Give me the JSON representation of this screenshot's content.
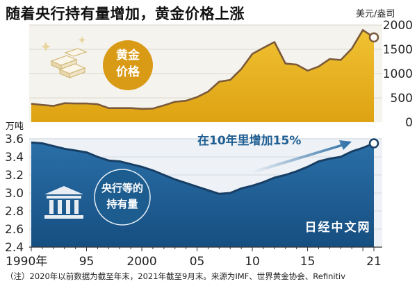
{
  "title": "随着央行持有量增加，黄金价格上涨",
  "footnote": "（注）2020年以前数据为截至年末，2021年截至9月末。来源为IMF、世界黄金协会、Refinitiv",
  "watermark": "日经中文网",
  "colors": {
    "gold_fill": "#e3ad15",
    "gold_line": "#7a5a3a",
    "navy_fill": "#1f5e92",
    "navy_line": "#173f66",
    "badge_gold": "#d99a16",
    "badge_navy": "#1d5c8f"
  },
  "chart_data": [
    {
      "type": "area",
      "name": "gold-price",
      "unit_label": "美元/盎司",
      "badge_text": [
        "黄金",
        "价格"
      ],
      "icon": "gold-bars-icon",
      "y_ticks": [
        0,
        500,
        1000,
        1500,
        2000
      ],
      "ylim": [
        0,
        2000
      ],
      "x": [
        1990,
        1991,
        1992,
        1993,
        1994,
        1995,
        1996,
        1997,
        1998,
        1999,
        2000,
        2001,
        2002,
        2003,
        2004,
        2005,
        2006,
        2007,
        2008,
        2009,
        2010,
        2011,
        2012,
        2013,
        2014,
        2015,
        2016,
        2017,
        2018,
        2019,
        2020,
        2021
      ],
      "values": [
        380,
        355,
        335,
        390,
        385,
        385,
        370,
        290,
        290,
        290,
        275,
        280,
        345,
        420,
        440,
        515,
        630,
        835,
        870,
        1095,
        1405,
        1530,
        1650,
        1205,
        1185,
        1060,
        1145,
        1300,
        1280,
        1515,
        1895,
        1745
      ]
    },
    {
      "type": "area",
      "name": "central-bank-holdings",
      "unit_label": "万吨",
      "badge_text": [
        "央行等的",
        "持有量"
      ],
      "icon": "bank-building-icon",
      "annotation": "在10年里增加15%",
      "y_ticks": [
        2.4,
        2.6,
        2.8,
        3.0,
        3.2,
        3.4,
        3.6
      ],
      "ylim": [
        2.4,
        3.6
      ],
      "x": [
        1990,
        1991,
        1992,
        1993,
        1994,
        1995,
        1996,
        1997,
        1998,
        1999,
        2000,
        2001,
        2002,
        2003,
        2004,
        2005,
        2006,
        2007,
        2008,
        2009,
        2010,
        2011,
        2012,
        2013,
        2014,
        2015,
        2016,
        2017,
        2018,
        2019,
        2020,
        2021
      ],
      "values": [
        3.56,
        3.55,
        3.52,
        3.49,
        3.47,
        3.45,
        3.4,
        3.36,
        3.35,
        3.32,
        3.29,
        3.25,
        3.2,
        3.15,
        3.11,
        3.07,
        3.03,
        2.99,
        3.0,
        3.05,
        3.08,
        3.12,
        3.17,
        3.2,
        3.24,
        3.29,
        3.35,
        3.38,
        3.4,
        3.46,
        3.5,
        3.55
      ]
    }
  ],
  "x_axis": {
    "tick_labels": [
      {
        "year": 1990,
        "label": "1990年"
      },
      {
        "year": 1995,
        "label": "95"
      },
      {
        "year": 2000,
        "label": "2000"
      },
      {
        "year": 2005,
        "label": "05"
      },
      {
        "year": 2010,
        "label": "10"
      },
      {
        "year": 2015,
        "label": "15"
      },
      {
        "year": 2021,
        "label": "21"
      }
    ]
  }
}
